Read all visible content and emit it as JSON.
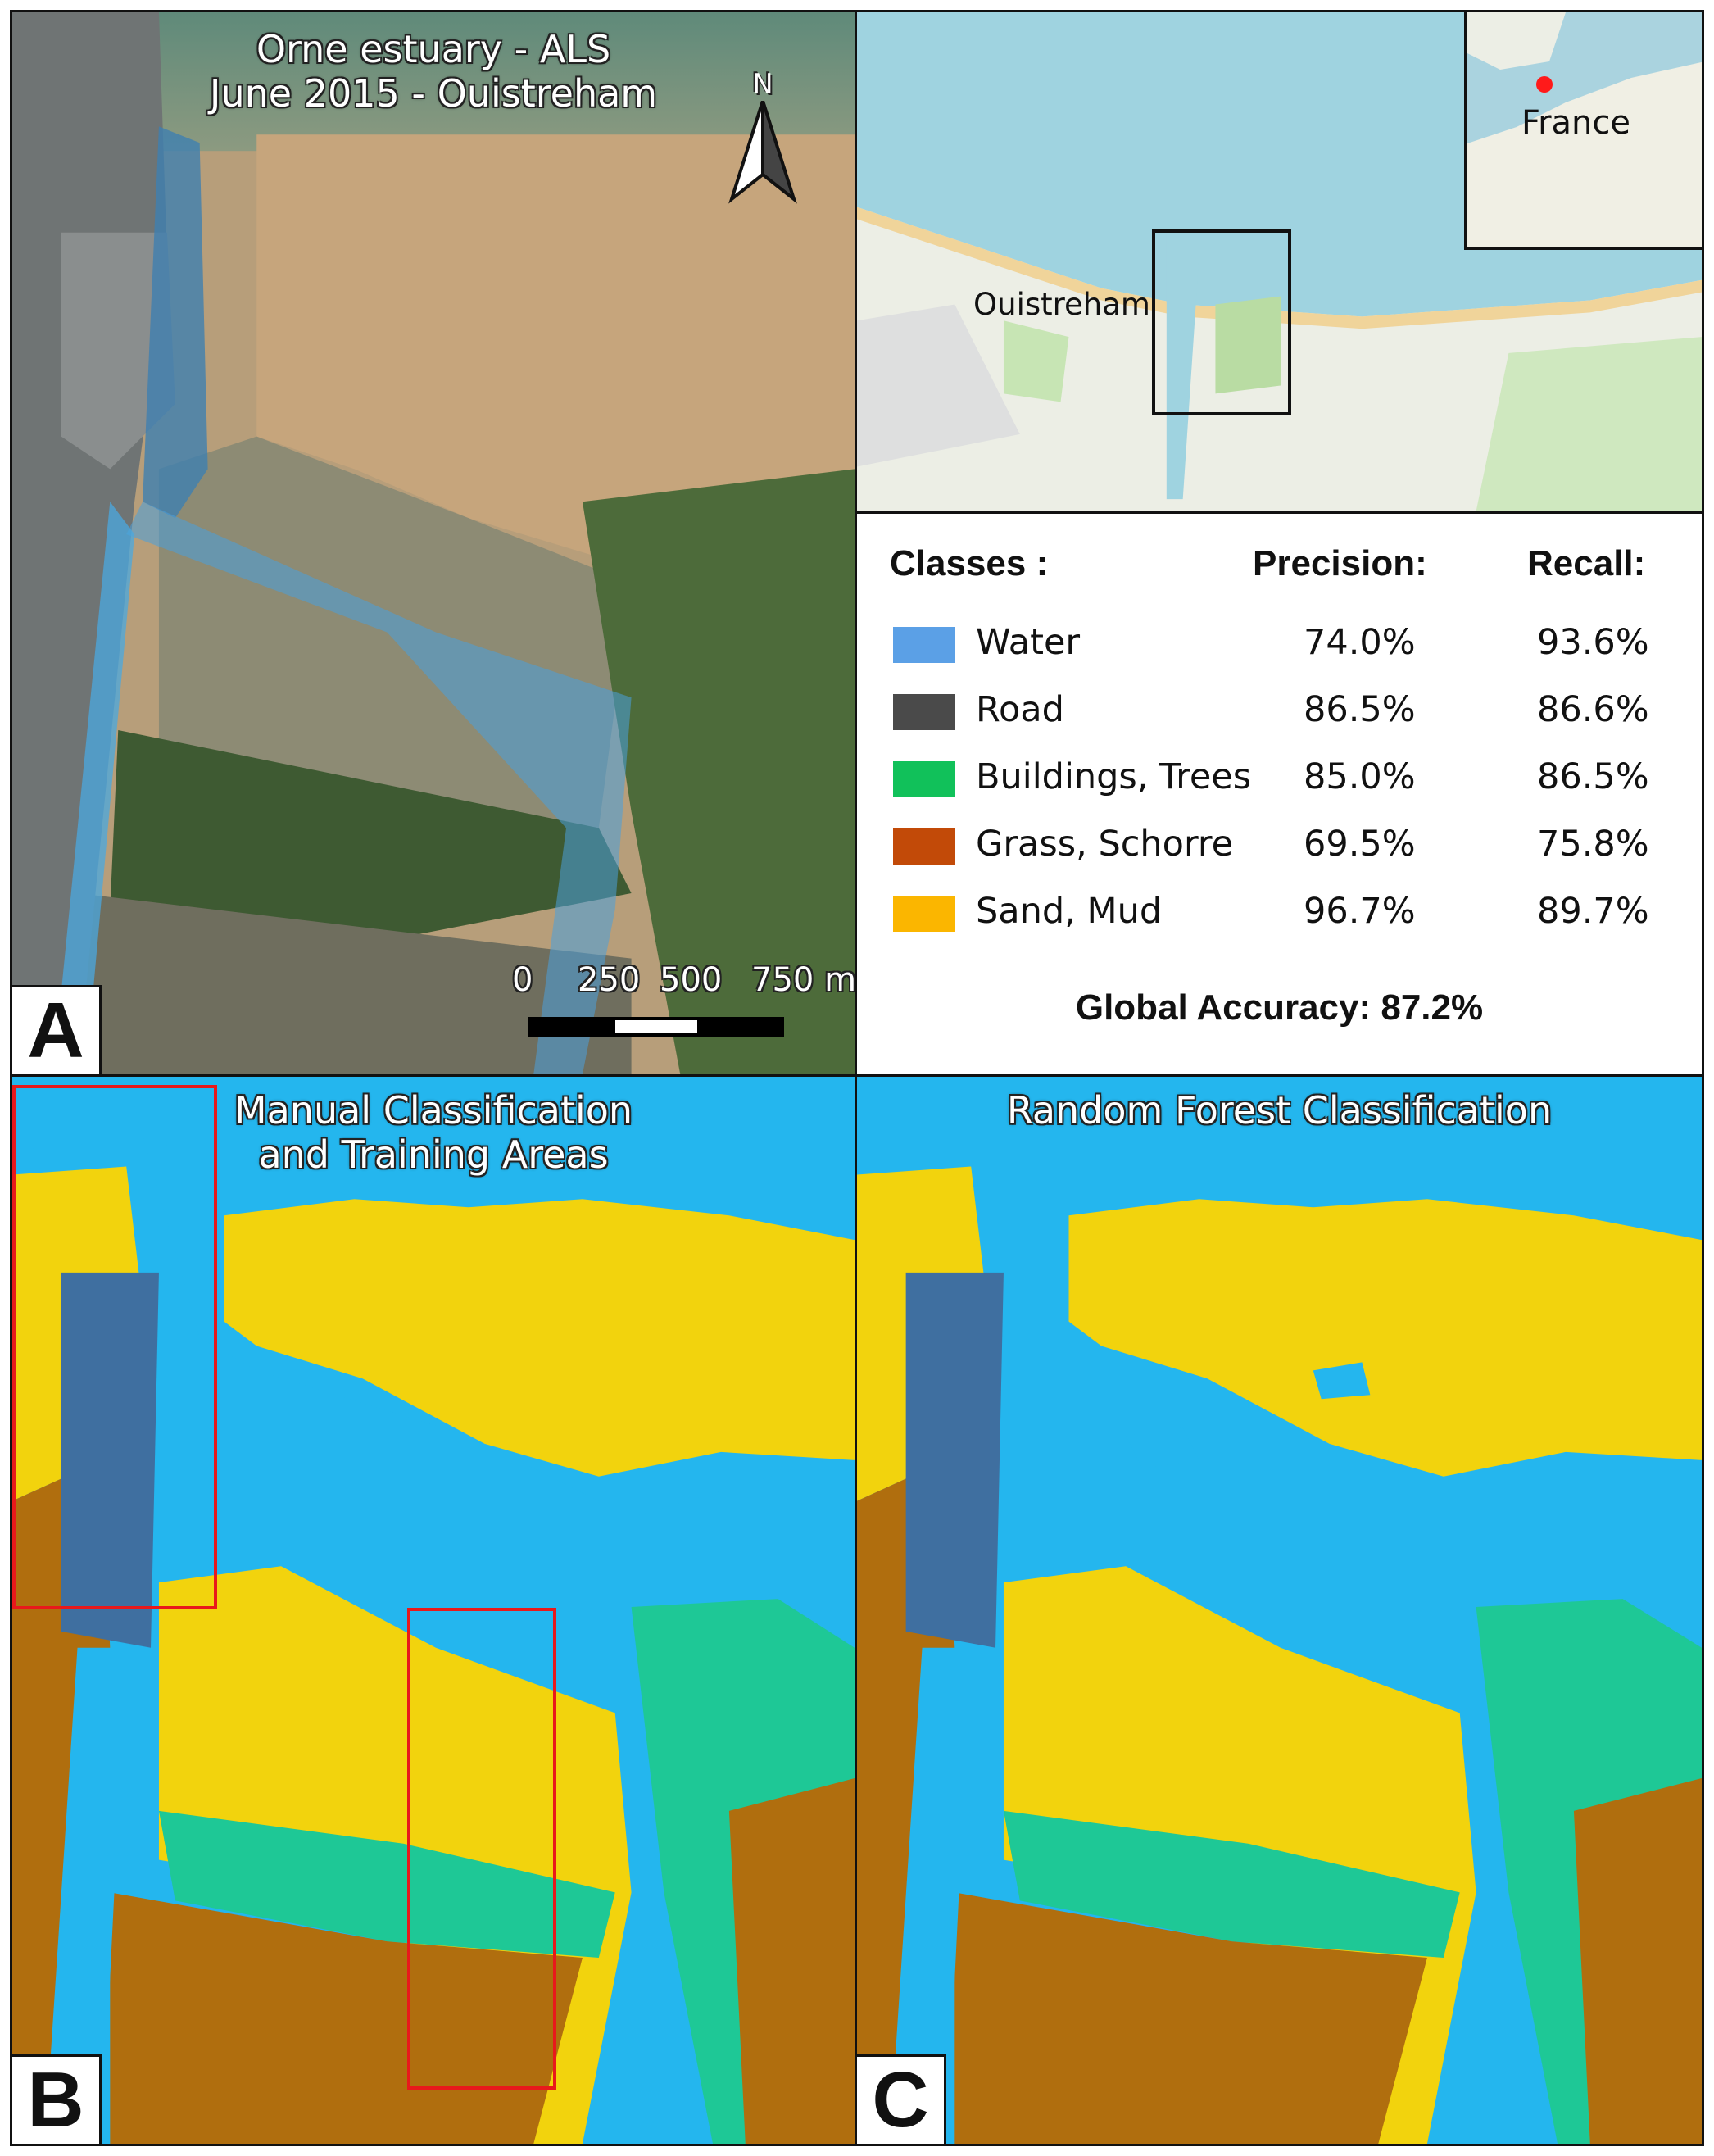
{
  "panelA": {
    "title_line1": "Orne estuary - ALS",
    "title_line2": "June 2015 - Ouistreham",
    "label": "A",
    "north_label": "N",
    "scale": {
      "t0": "0",
      "t1": "250",
      "t2": "500",
      "t3": "750 m"
    }
  },
  "locator": {
    "town": "Ouistreham",
    "inset_label": "France",
    "sea_color": "#9fd3e0",
    "marker_color": "#ff1a1a"
  },
  "accuracy": {
    "header_classes": "Classes :",
    "header_precision": "Precision:",
    "header_recall": "Recall:",
    "rows": [
      {
        "name": "Water",
        "color": "#5ba0e6",
        "precision": "74.0%",
        "recall": "93.6%"
      },
      {
        "name": "Road",
        "color": "#4a4a4a",
        "precision": "86.5%",
        "recall": "86.6%"
      },
      {
        "name": "Buildings, Trees",
        "color": "#11c15a",
        "precision": "85.0%",
        "recall": "86.5%"
      },
      {
        "name": "Grass, Schorre",
        "color": "#c24a08",
        "precision": "69.5%",
        "recall": "75.8%"
      },
      {
        "name": "Sand, Mud",
        "color": "#fbb600",
        "precision": "96.7%",
        "recall": "89.7%"
      }
    ],
    "global": "Global Accuracy: 87.2%"
  },
  "panelB": {
    "title_line1": "Manual Classification",
    "title_line2": "and Training Areas",
    "label": "B"
  },
  "panelC": {
    "title_line1": "Random Forest Classification",
    "label": "C"
  },
  "classified_colors": {
    "water": "#24b6ee",
    "sand": "#f2d30d",
    "vegetation": "#1ec896",
    "grass": "#b06e0e",
    "road": "#3f6fa0"
  }
}
